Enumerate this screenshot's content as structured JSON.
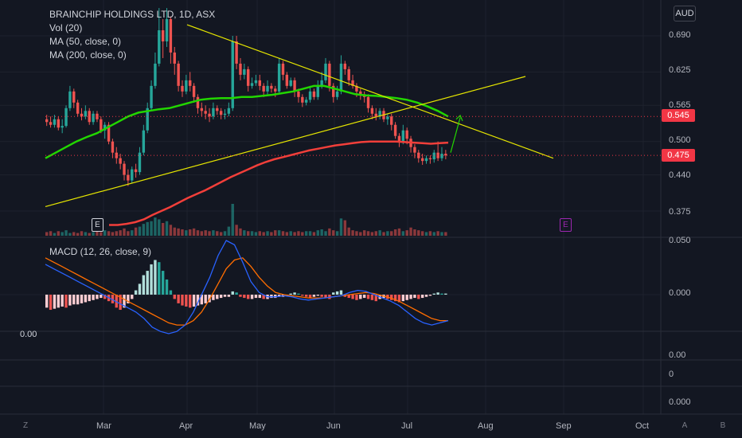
{
  "chart_data": {
    "type": "candlestick",
    "symbol_title": "BRAINCHIP HOLDINGS LTD, 1D, ASX",
    "indicators": [
      "Vol (20)",
      "MA (50, close, 0)",
      "MA (200, close, 0)"
    ],
    "currency": "AUD",
    "yaxis_ticks": [
      "0.690",
      "0.625",
      "0.565",
      "0.500",
      "0.440",
      "0.375",
      "0.050"
    ],
    "price_tags": [
      {
        "label": "0.545",
        "value": 0.545,
        "color": "#f23645"
      },
      {
        "label": "0.475",
        "value": 0.475,
        "color": "#f23645"
      }
    ],
    "xaxis_ticks": [
      "Mar",
      "Apr",
      "May",
      "Jun",
      "Jul",
      "Aug",
      "Sep",
      "Oct"
    ],
    "events": [
      {
        "label": "E",
        "at": "Feb",
        "color": "#d1d4dc"
      },
      {
        "label": "E",
        "at": "Aug",
        "color": "#9c27b0"
      }
    ],
    "candles": [
      [
        0.54,
        0.535,
        0.548,
        0.528
      ],
      [
        0.535,
        0.53,
        0.545,
        0.525
      ],
      [
        0.53,
        0.54,
        0.548,
        0.525
      ],
      [
        0.54,
        0.525,
        0.545,
        0.52
      ],
      [
        0.525,
        0.528,
        0.54,
        0.515
      ],
      [
        0.528,
        0.56,
        0.565,
        0.525
      ],
      [
        0.56,
        0.59,
        0.6,
        0.555
      ],
      [
        0.59,
        0.57,
        0.595,
        0.56
      ],
      [
        0.57,
        0.55,
        0.575,
        0.545
      ],
      [
        0.55,
        0.545,
        0.56,
        0.538
      ],
      [
        0.545,
        0.555,
        0.565,
        0.54
      ],
      [
        0.555,
        0.535,
        0.56,
        0.53
      ],
      [
        0.535,
        0.55,
        0.555,
        0.53
      ],
      [
        0.55,
        0.54,
        0.555,
        0.535
      ],
      [
        0.54,
        0.52,
        0.545,
        0.515
      ],
      [
        0.52,
        0.53,
        0.535,
        0.505
      ],
      [
        0.53,
        0.5,
        0.535,
        0.495
      ],
      [
        0.5,
        0.48,
        0.505,
        0.47
      ],
      [
        0.48,
        0.47,
        0.49,
        0.46
      ],
      [
        0.47,
        0.46,
        0.478,
        0.45
      ],
      [
        0.46,
        0.44,
        0.465,
        0.43
      ],
      [
        0.44,
        0.43,
        0.45,
        0.42
      ],
      [
        0.43,
        0.45,
        0.455,
        0.425
      ],
      [
        0.45,
        0.445,
        0.46,
        0.435
      ],
      [
        0.445,
        0.48,
        0.49,
        0.44
      ],
      [
        0.48,
        0.52,
        0.53,
        0.475
      ],
      [
        0.52,
        0.56,
        0.57,
        0.515
      ],
      [
        0.56,
        0.6,
        0.61,
        0.555
      ],
      [
        0.6,
        0.64,
        0.66,
        0.595
      ],
      [
        0.64,
        0.7,
        0.74,
        0.635
      ],
      [
        0.7,
        0.68,
        0.72,
        0.65
      ],
      [
        0.68,
        0.72,
        0.74,
        0.67
      ],
      [
        0.72,
        0.66,
        0.725,
        0.64
      ],
      [
        0.66,
        0.64,
        0.67,
        0.62
      ],
      [
        0.64,
        0.6,
        0.645,
        0.59
      ],
      [
        0.6,
        0.59,
        0.61,
        0.58
      ],
      [
        0.59,
        0.61,
        0.62,
        0.585
      ],
      [
        0.61,
        0.6,
        0.625,
        0.59
      ],
      [
        0.6,
        0.58,
        0.605,
        0.57
      ],
      [
        0.58,
        0.56,
        0.585,
        0.55
      ],
      [
        0.56,
        0.555,
        0.57,
        0.545
      ],
      [
        0.555,
        0.55,
        0.565,
        0.54
      ],
      [
        0.55,
        0.545,
        0.56,
        0.535
      ],
      [
        0.545,
        0.56,
        0.57,
        0.54
      ],
      [
        0.56,
        0.555,
        0.565,
        0.548
      ],
      [
        0.555,
        0.548,
        0.56,
        0.54
      ],
      [
        0.548,
        0.55,
        0.558,
        0.54
      ],
      [
        0.55,
        0.56,
        0.57,
        0.545
      ],
      [
        0.56,
        0.68,
        0.69,
        0.555
      ],
      [
        0.68,
        0.64,
        0.69,
        0.63
      ],
      [
        0.64,
        0.62,
        0.65,
        0.61
      ],
      [
        0.62,
        0.63,
        0.64,
        0.612
      ],
      [
        0.63,
        0.6,
        0.635,
        0.59
      ],
      [
        0.6,
        0.605,
        0.615,
        0.595
      ],
      [
        0.605,
        0.61,
        0.62,
        0.6
      ],
      [
        0.61,
        0.6,
        0.62,
        0.592
      ],
      [
        0.6,
        0.59,
        0.605,
        0.58
      ],
      [
        0.59,
        0.6,
        0.61,
        0.585
      ],
      [
        0.6,
        0.595,
        0.605,
        0.588
      ],
      [
        0.595,
        0.59,
        0.6,
        0.58
      ],
      [
        0.59,
        0.64,
        0.65,
        0.585
      ],
      [
        0.64,
        0.62,
        0.645,
        0.61
      ],
      [
        0.62,
        0.6,
        0.625,
        0.595
      ],
      [
        0.6,
        0.61,
        0.615,
        0.598
      ],
      [
        0.61,
        0.59,
        0.615,
        0.58
      ],
      [
        0.59,
        0.58,
        0.595,
        0.57
      ],
      [
        0.58,
        0.57,
        0.585,
        0.562
      ],
      [
        0.57,
        0.575,
        0.58,
        0.565
      ],
      [
        0.575,
        0.59,
        0.6,
        0.57
      ],
      [
        0.59,
        0.58,
        0.595,
        0.575
      ],
      [
        0.58,
        0.6,
        0.61,
        0.575
      ],
      [
        0.6,
        0.61,
        0.625,
        0.595
      ],
      [
        0.61,
        0.64,
        0.65,
        0.605
      ],
      [
        0.64,
        0.6,
        0.645,
        0.59
      ],
      [
        0.6,
        0.58,
        0.605,
        0.57
      ],
      [
        0.58,
        0.59,
        0.6,
        0.575
      ],
      [
        0.59,
        0.64,
        0.655,
        0.585
      ],
      [
        0.64,
        0.63,
        0.645,
        0.62
      ],
      [
        0.63,
        0.61,
        0.635,
        0.6
      ],
      [
        0.61,
        0.6,
        0.62,
        0.595
      ],
      [
        0.6,
        0.59,
        0.605,
        0.58
      ],
      [
        0.59,
        0.585,
        0.595,
        0.575
      ],
      [
        0.585,
        0.58,
        0.59,
        0.57
      ],
      [
        0.58,
        0.56,
        0.585,
        0.552
      ],
      [
        0.56,
        0.55,
        0.565,
        0.54
      ],
      [
        0.55,
        0.545,
        0.56,
        0.538
      ],
      [
        0.545,
        0.555,
        0.56,
        0.54
      ],
      [
        0.555,
        0.54,
        0.56,
        0.535
      ],
      [
        0.54,
        0.545,
        0.55,
        0.53
      ],
      [
        0.545,
        0.53,
        0.55,
        0.52
      ],
      [
        0.53,
        0.51,
        0.535,
        0.505
      ],
      [
        0.51,
        0.5,
        0.515,
        0.49
      ],
      [
        0.5,
        0.52,
        0.53,
        0.495
      ],
      [
        0.52,
        0.505,
        0.525,
        0.495
      ],
      [
        0.505,
        0.49,
        0.51,
        0.48
      ],
      [
        0.49,
        0.48,
        0.495,
        0.47
      ],
      [
        0.48,
        0.47,
        0.485,
        0.462
      ],
      [
        0.47,
        0.465,
        0.478,
        0.458
      ],
      [
        0.465,
        0.47,
        0.475,
        0.46
      ],
      [
        0.47,
        0.468,
        0.475,
        0.46
      ],
      [
        0.468,
        0.48,
        0.485,
        0.462
      ],
      [
        0.48,
        0.47,
        0.5,
        0.465
      ],
      [
        0.47,
        0.478,
        0.49,
        0.465
      ],
      [
        0.478,
        0.475,
        0.485,
        0.468
      ]
    ],
    "ma50": [
      0.47,
      0.48,
      0.49,
      0.5,
      0.508,
      0.515,
      0.525,
      0.535,
      0.545,
      0.552,
      0.555,
      0.558,
      0.56,
      0.565,
      0.57,
      0.575,
      0.577,
      0.578,
      0.578,
      0.58,
      0.58,
      0.582,
      0.584,
      0.587,
      0.59,
      0.595,
      0.6,
      0.6,
      0.595,
      0.59,
      0.585,
      0.583,
      0.582,
      0.58,
      0.578,
      0.575,
      0.57,
      0.563,
      0.555,
      0.545
    ],
    "ma200": [
      0.35,
      0.35,
      0.352,
      0.355,
      0.36,
      0.368,
      0.375,
      0.382,
      0.39,
      0.398,
      0.405,
      0.412,
      0.42,
      0.428,
      0.436,
      0.443,
      0.45,
      0.457,
      0.463,
      0.468,
      0.472,
      0.476,
      0.48,
      0.484,
      0.487,
      0.49,
      0.493,
      0.495,
      0.497,
      0.499,
      0.5,
      0.5,
      0.5,
      0.5,
      0.499,
      0.498,
      0.497,
      0.496,
      0.497,
      0.498
    ],
    "volume": [
      0.4,
      0.5,
      0.3,
      0.5,
      0.4,
      0.6,
      0.3,
      0.4,
      0.3,
      0.5,
      0.4,
      0.3,
      0.4,
      0.5,
      0.4,
      0.6,
      0.5,
      0.4,
      0.5,
      0.6,
      0.8,
      0.5,
      0.6,
      0.9,
      1.0,
      1.3,
      1.5,
      1.6,
      2.0,
      1.8,
      1.4,
      1.6,
      1.2,
      0.9,
      0.8,
      0.7,
      0.6,
      0.7,
      0.8,
      0.6,
      0.5,
      0.6,
      0.5,
      0.6,
      0.5,
      0.4,
      0.5,
      1.0,
      3.5,
      1.2,
      0.8,
      0.6,
      0.5,
      0.5,
      0.4,
      0.5,
      0.4,
      0.5,
      0.4,
      0.6,
      0.6,
      0.5,
      0.4,
      0.5,
      0.4,
      0.5,
      0.4,
      0.5,
      0.5,
      0.4,
      0.6,
      0.7,
      0.5,
      0.8,
      0.6,
      0.5,
      1.9,
      1.7,
      0.9,
      0.6,
      0.5,
      0.4,
      0.6,
      0.5,
      0.4,
      0.5,
      0.6,
      0.4,
      0.5,
      0.5,
      0.7,
      0.8,
      0.5,
      0.6,
      0.9,
      0.7,
      0.6,
      0.5,
      0.4,
      0.5,
      0.4,
      0.5,
      0.4,
      0.4
    ],
    "macd_label": "MACD (12, 26, close, 9)",
    "macd_ticks": [
      "0.050",
      "0.000"
    ],
    "macd_hist": [
      -0.012,
      -0.014,
      -0.013,
      -0.012,
      -0.011,
      -0.012,
      -0.01,
      -0.009,
      -0.009,
      -0.008,
      -0.007,
      -0.006,
      -0.005,
      -0.004,
      -0.003,
      -0.004,
      -0.006,
      -0.008,
      -0.012,
      -0.014,
      -0.012,
      -0.008,
      -0.004,
      0.004,
      0.01,
      0.018,
      0.022,
      0.028,
      0.032,
      0.03,
      0.022,
      0.014,
      0.004,
      -0.004,
      -0.008,
      -0.01,
      -0.011,
      -0.012,
      -0.011,
      -0.01,
      -0.009,
      -0.008,
      -0.007,
      -0.005,
      -0.004,
      -0.003,
      -0.002,
      -0.002,
      0.003,
      0.002,
      -0.002,
      -0.003,
      -0.004,
      -0.004,
      -0.003,
      -0.003,
      -0.004,
      -0.004,
      -0.003,
      -0.003,
      -0.002,
      -0.002,
      -0.001,
      0.001,
      0.002,
      0.001,
      -0.001,
      -0.002,
      -0.003,
      -0.002,
      -0.001,
      -0.002,
      -0.003,
      -0.004,
      0.002,
      0.003,
      0.004,
      -0.002,
      -0.003,
      -0.004,
      -0.005,
      -0.004,
      -0.003,
      -0.004,
      -0.005,
      -0.006,
      -0.004,
      -0.003,
      -0.004,
      -0.005,
      -0.006,
      -0.007,
      -0.006,
      -0.005,
      -0.004,
      -0.003,
      -0.004,
      -0.003,
      -0.002,
      -0.001,
      0.001,
      0.002,
      0.001,
      0.001
    ],
    "macd_line": [
      0.028,
      0.024,
      0.02,
      0.016,
      0.012,
      0.008,
      0.004,
      0.0,
      -0.004,
      -0.008,
      -0.012,
      -0.016,
      -0.022,
      -0.03,
      -0.034,
      -0.036,
      -0.034,
      -0.028,
      -0.016,
      0.0,
      0.016,
      0.036,
      0.05,
      0.046,
      0.03,
      0.012,
      0.002,
      -0.002,
      -0.002,
      -0.001,
      -0.002,
      -0.004,
      -0.005,
      -0.004,
      -0.003,
      -0.002,
      -0.001,
      0.002,
      0.004,
      0.003,
      0.0,
      -0.003,
      -0.006,
      -0.01,
      -0.016,
      -0.022,
      -0.026,
      -0.028,
      -0.026,
      -0.024
    ],
    "signal_line": [
      0.034,
      0.03,
      0.026,
      0.022,
      0.018,
      0.014,
      0.01,
      0.006,
      0.002,
      -0.002,
      -0.006,
      -0.01,
      -0.014,
      -0.018,
      -0.022,
      -0.026,
      -0.028,
      -0.028,
      -0.024,
      -0.016,
      -0.004,
      0.01,
      0.024,
      0.032,
      0.034,
      0.026,
      0.016,
      0.008,
      0.002,
      0.0,
      -0.001,
      -0.002,
      -0.003,
      -0.003,
      -0.003,
      -0.002,
      -0.001,
      0.0,
      0.001,
      0.002,
      0.001,
      -0.001,
      -0.003,
      -0.006,
      -0.01,
      -0.014,
      -0.018,
      -0.022,
      -0.024,
      -0.024
    ],
    "lower_pane_ticks": [
      "0.00",
      "0",
      "0.000"
    ],
    "lower_pane_left_label": "0.00",
    "colors": {
      "bg": "#131722",
      "up": "#26a69a",
      "down": "#ef5350",
      "ma50": "#22d600",
      "ma200": "#f23f3a",
      "trend": "#e6e600",
      "macd": "#2962ff",
      "signal": "#ff6d00",
      "tag": "#f23645"
    }
  },
  "bottom_bar": {
    "left": "Z",
    "right": [
      "A",
      "B"
    ]
  }
}
